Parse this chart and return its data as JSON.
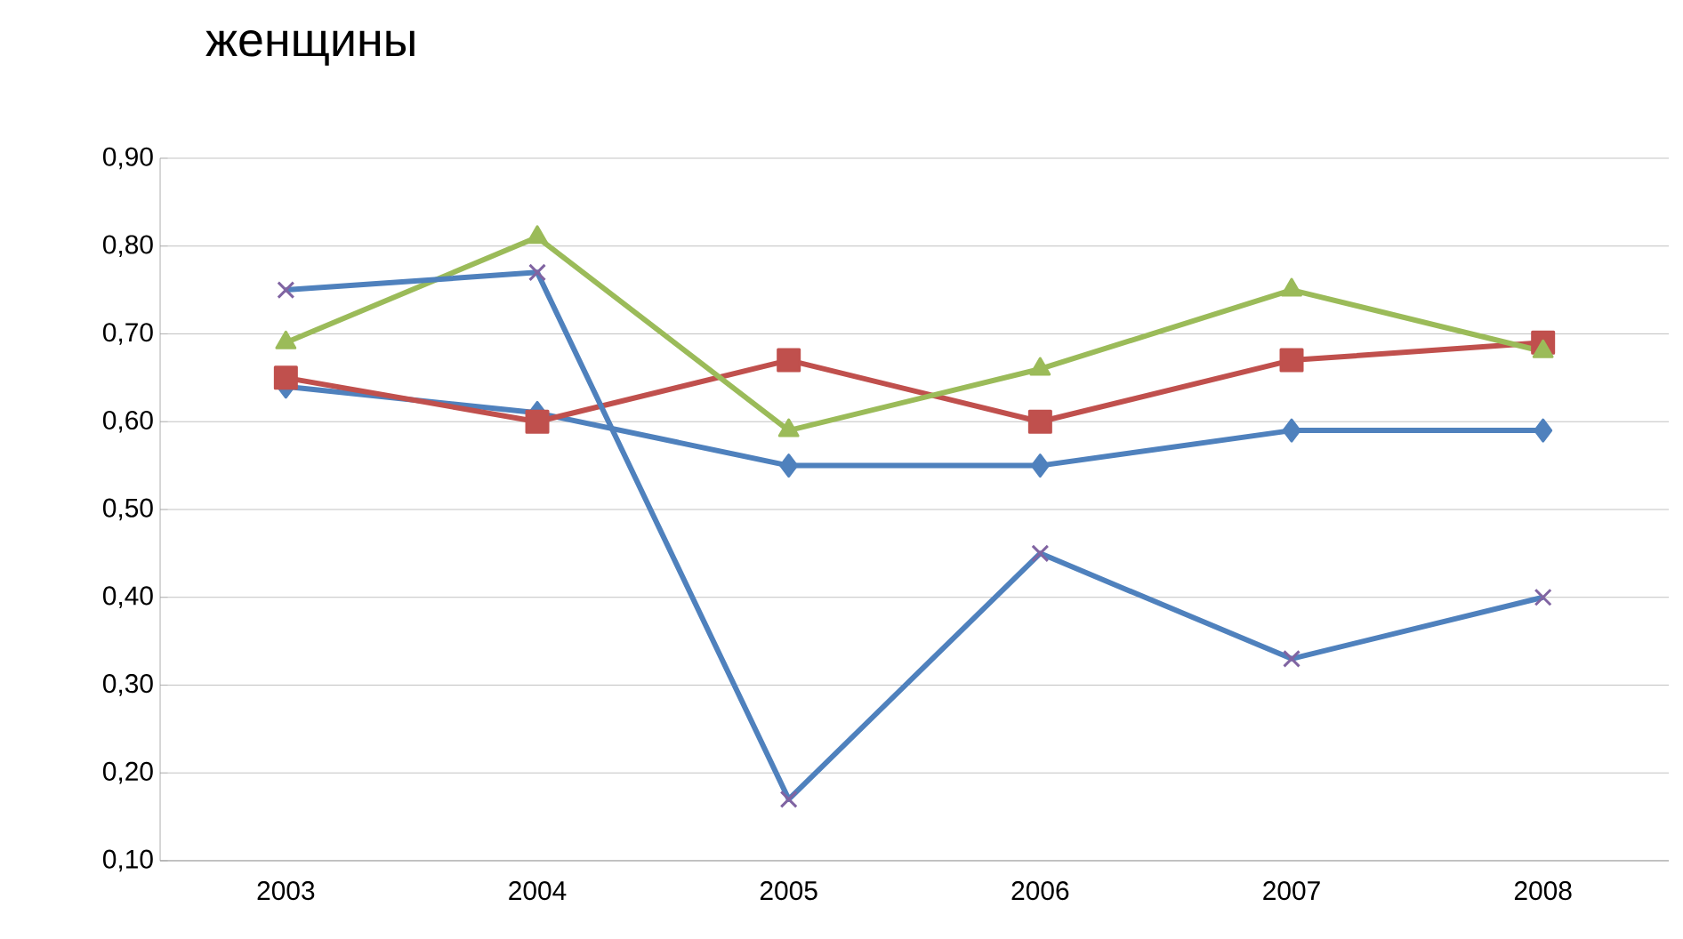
{
  "chart_data": {
    "type": "line",
    "title": "женщины",
    "categories": [
      "2003",
      "2004",
      "2005",
      "2006",
      "2007",
      "2008"
    ],
    "series": [
      {
        "color": "#4f81bd",
        "marker": "diamond",
        "values": [
          0.64,
          0.61,
          0.55,
          0.55,
          0.59,
          0.59
        ]
      },
      {
        "color": "#c0504d",
        "marker": "square",
        "values": [
          0.65,
          0.6,
          0.67,
          0.6,
          0.67,
          0.69
        ]
      },
      {
        "color": "#9bbb59",
        "marker": "triangle",
        "values": [
          0.69,
          0.81,
          0.59,
          0.66,
          0.75,
          0.68
        ]
      },
      {
        "color": "#4f81bd",
        "marker": "cross",
        "values": [
          0.75,
          0.77,
          0.17,
          0.45,
          0.33,
          0.4
        ]
      }
    ],
    "ylim": [
      0.1,
      0.9
    ],
    "yticks": [
      {
        "value": 0.1,
        "label": "0,10"
      },
      {
        "value": 0.2,
        "label": "0,20"
      },
      {
        "value": 0.3,
        "label": "0,30"
      },
      {
        "value": 0.4,
        "label": "0,40"
      },
      {
        "value": 0.5,
        "label": "0,50"
      },
      {
        "value": 0.6,
        "label": "0,60"
      },
      {
        "value": 0.7,
        "label": "0,70"
      },
      {
        "value": 0.8,
        "label": "0,80"
      },
      {
        "value": 0.9,
        "label": "0,90"
      }
    ],
    "grid": "y"
  }
}
